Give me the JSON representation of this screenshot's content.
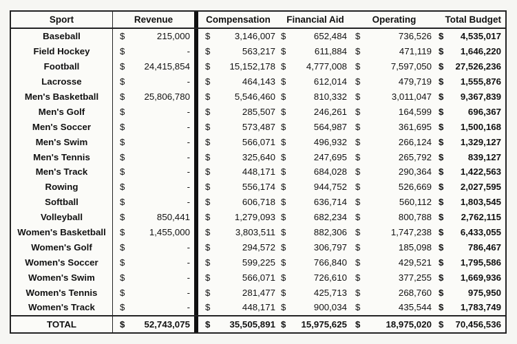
{
  "headers": {
    "sport": "Sport",
    "revenue": "Revenue",
    "compensation": "Compensation",
    "financial_aid": "Financial Aid",
    "operating": "Operating",
    "total_budget": "Total Budget"
  },
  "currency_symbol": "$",
  "rows": [
    {
      "sport": "Baseball",
      "revenue": "215,000",
      "compensation": "3,146,007",
      "financial_aid": "652,484",
      "operating": "736,526",
      "total_budget": "4,535,017"
    },
    {
      "sport": "Field Hockey",
      "revenue": "-",
      "compensation": "563,217",
      "financial_aid": "611,884",
      "operating": "471,119",
      "total_budget": "1,646,220"
    },
    {
      "sport": "Football",
      "revenue": "24,415,854",
      "compensation": "15,152,178",
      "financial_aid": "4,777,008",
      "operating": "7,597,050",
      "total_budget": "27,526,236"
    },
    {
      "sport": "Lacrosse",
      "revenue": "-",
      "compensation": "464,143",
      "financial_aid": "612,014",
      "operating": "479,719",
      "total_budget": "1,555,876"
    },
    {
      "sport": "Men's Basketball",
      "revenue": "25,806,780",
      "compensation": "5,546,460",
      "financial_aid": "810,332",
      "operating": "3,011,047",
      "total_budget": "9,367,839"
    },
    {
      "sport": "Men's Golf",
      "revenue": "-",
      "compensation": "285,507",
      "financial_aid": "246,261",
      "operating": "164,599",
      "total_budget": "696,367"
    },
    {
      "sport": "Men's Soccer",
      "revenue": "-",
      "compensation": "573,487",
      "financial_aid": "564,987",
      "operating": "361,695",
      "total_budget": "1,500,168"
    },
    {
      "sport": "Men's Swim",
      "revenue": "-",
      "compensation": "566,071",
      "financial_aid": "496,932",
      "operating": "266,124",
      "total_budget": "1,329,127"
    },
    {
      "sport": "Men's Tennis",
      "revenue": "-",
      "compensation": "325,640",
      "financial_aid": "247,695",
      "operating": "265,792",
      "total_budget": "839,127"
    },
    {
      "sport": "Men's Track",
      "revenue": "-",
      "compensation": "448,171",
      "financial_aid": "684,028",
      "operating": "290,364",
      "total_budget": "1,422,563"
    },
    {
      "sport": "Rowing",
      "revenue": "-",
      "compensation": "556,174",
      "financial_aid": "944,752",
      "operating": "526,669",
      "total_budget": "2,027,595"
    },
    {
      "sport": "Softball",
      "revenue": "-",
      "compensation": "606,718",
      "financial_aid": "636,714",
      "operating": "560,112",
      "total_budget": "1,803,545"
    },
    {
      "sport": "Volleyball",
      "revenue": "850,441",
      "compensation": "1,279,093",
      "financial_aid": "682,234",
      "operating": "800,788",
      "total_budget": "2,762,115"
    },
    {
      "sport": "Women's Basketball",
      "revenue": "1,455,000",
      "compensation": "3,803,511",
      "financial_aid": "882,306",
      "operating": "1,747,238",
      "total_budget": "6,433,055"
    },
    {
      "sport": "Women's Golf",
      "revenue": "-",
      "compensation": "294,572",
      "financial_aid": "306,797",
      "operating": "185,098",
      "total_budget": "786,467"
    },
    {
      "sport": "Women's Soccer",
      "revenue": "-",
      "compensation": "599,225",
      "financial_aid": "766,840",
      "operating": "429,521",
      "total_budget": "1,795,586"
    },
    {
      "sport": "Women's Swim",
      "revenue": "-",
      "compensation": "566,071",
      "financial_aid": "726,610",
      "operating": "377,255",
      "total_budget": "1,669,936"
    },
    {
      "sport": "Women's Tennis",
      "revenue": "-",
      "compensation": "281,477",
      "financial_aid": "425,713",
      "operating": "268,760",
      "total_budget": "975,950"
    },
    {
      "sport": "Women's Track",
      "revenue": "-",
      "compensation": "448,171",
      "financial_aid": "900,034",
      "operating": "435,544",
      "total_budget": "1,783,749"
    }
  ],
  "total": {
    "sport": "TOTAL",
    "revenue": "52,743,075",
    "compensation": "35,505,891",
    "financial_aid": "15,975,625",
    "operating": "18,975,020",
    "total_budget": "70,456,536"
  }
}
